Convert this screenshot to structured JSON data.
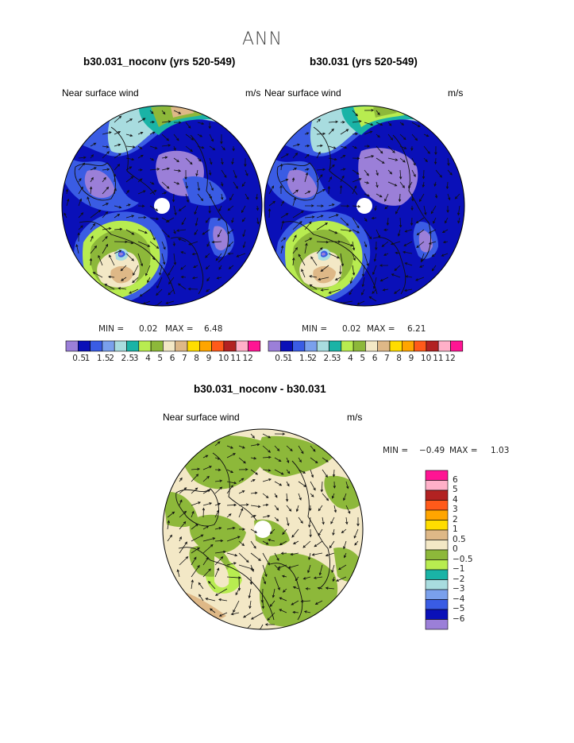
{
  "page": {
    "suptitle": "ANN"
  },
  "panels": [
    {
      "title": "b30.031_noconv (yrs 520-549)",
      "left_label": "Near surface wind",
      "right_label": "m/s",
      "min_label": "MIN =",
      "min_value": "0.02",
      "max_label": "MAX =",
      "max_value": "6.48"
    },
    {
      "title": "b30.031 (yrs 520-549)",
      "left_label": "Near surface wind",
      "right_label": "m/s",
      "min_label": "MIN =",
      "min_value": "0.02",
      "max_label": "MAX =",
      "max_value": "6.21"
    },
    {
      "title": "b30.031_noconv - b30.031",
      "left_label": "Near surface wind",
      "right_label": "m/s",
      "min_label": "MIN =",
      "min_value": "−0.49",
      "max_label": "MAX =",
      "max_value": "1.03"
    }
  ],
  "chart_data": [
    {
      "type": "heatmap",
      "projection": "polar stereographic (north pole)",
      "field": "near surface wind speed with wind vectors",
      "units": "m/s",
      "min": 0.02,
      "max": 6.48,
      "colorbar": {
        "orientation": "horizontal",
        "levels": [
          0.5,
          1,
          1.5,
          2,
          2.5,
          3,
          4,
          5,
          6,
          7,
          8,
          9,
          10,
          11,
          12
        ],
        "tick_labels": [
          "0.5",
          "1",
          "1.5",
          "2",
          "2.5",
          "3",
          "4",
          "5",
          "6",
          "7",
          "8",
          "9",
          "10",
          "11",
          "12"
        ],
        "colors": [
          "#9b7fd8",
          "#0a10b8",
          "#3a5ce4",
          "#7aa0ec",
          "#a8dcdf",
          "#1ab3a6",
          "#b8ec50",
          "#8db83a",
          "#f3e8c6",
          "#deb887",
          "#ffdd00",
          "#ffa500",
          "#ff5a1a",
          "#b22222",
          "#ffb0c8",
          "#ff1493"
        ]
      }
    },
    {
      "type": "heatmap",
      "projection": "polar stereographic (north pole)",
      "field": "near surface wind speed with wind vectors",
      "units": "m/s",
      "min": 0.02,
      "max": 6.21,
      "colorbar": {
        "orientation": "horizontal",
        "levels": [
          0.5,
          1,
          1.5,
          2,
          2.5,
          3,
          4,
          5,
          6,
          7,
          8,
          9,
          10,
          11,
          12
        ],
        "tick_labels": [
          "0.5",
          "1",
          "1.5",
          "2",
          "2.5",
          "3",
          "4",
          "5",
          "6",
          "7",
          "8",
          "9",
          "10",
          "11",
          "12"
        ],
        "colors": [
          "#9b7fd8",
          "#0a10b8",
          "#3a5ce4",
          "#7aa0ec",
          "#a8dcdf",
          "#1ab3a6",
          "#b8ec50",
          "#8db83a",
          "#f3e8c6",
          "#deb887",
          "#ffdd00",
          "#ffa500",
          "#ff5a1a",
          "#b22222",
          "#ffb0c8",
          "#ff1493"
        ]
      }
    },
    {
      "type": "heatmap",
      "projection": "polar stereographic (north pole)",
      "field": "near surface wind speed difference with wind vectors",
      "units": "m/s",
      "min": -0.49,
      "max": 1.03,
      "colorbar": {
        "orientation": "vertical",
        "levels_top_to_bottom": [
          6,
          5,
          4,
          3,
          2,
          1,
          0.5,
          0,
          -0.5,
          -1,
          -2,
          -3,
          -4,
          -5,
          -6
        ],
        "tick_labels_top_to_bottom": [
          "6",
          "5",
          "4",
          "3",
          "2",
          "1",
          "0.5",
          "0",
          "−0.5",
          "−1",
          "−2",
          "−3",
          "−4",
          "−5",
          "−6"
        ],
        "colors_top_to_bottom": [
          "#ff1493",
          "#ffb0c8",
          "#b22222",
          "#ff5a1a",
          "#ffa500",
          "#ffdd00",
          "#deb887",
          "#f3e8c6",
          "#8db83a",
          "#b8ec50",
          "#1ab3a6",
          "#a8dcdf",
          "#7aa0ec",
          "#3a5ce4",
          "#0a10b8",
          "#9b7fd8"
        ]
      }
    }
  ]
}
